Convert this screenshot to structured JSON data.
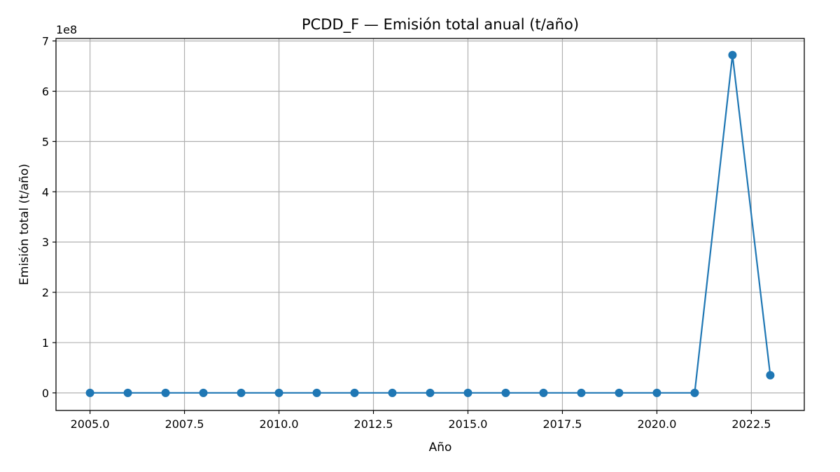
{
  "chart_data": {
    "type": "line",
    "title": "PCDD_F — Emisión total anual (t/año)",
    "xlabel": "Año",
    "ylabel": "Emisión total (t/año)",
    "y_offset_label": "1e8",
    "grid": true,
    "xlim": [
      2004.1,
      2023.9
    ],
    "ylim": [
      -0.35,
      7.05
    ],
    "x_ticks": [
      2005.0,
      2007.5,
      2010.0,
      2012.5,
      2015.0,
      2017.5,
      2020.0,
      2022.5
    ],
    "x_tick_labels": [
      "2005.0",
      "2007.5",
      "2010.0",
      "2012.5",
      "2015.0",
      "2017.5",
      "2020.0",
      "2022.5"
    ],
    "y_ticks": [
      0,
      1,
      2,
      3,
      4,
      5,
      6,
      7
    ],
    "y_tick_labels": [
      "0",
      "1",
      "2",
      "3",
      "4",
      "5",
      "6",
      "7"
    ],
    "color": "#1f77b4",
    "x": [
      2005,
      2006,
      2007,
      2008,
      2009,
      2010,
      2011,
      2012,
      2013,
      2014,
      2015,
      2016,
      2017,
      2018,
      2019,
      2020,
      2021,
      2022,
      2023
    ],
    "y_units_note": "values in units of 1e8 t/año",
    "y": [
      0,
      0,
      0,
      0,
      0,
      0,
      0,
      0,
      0,
      0,
      0,
      0,
      0,
      0,
      0,
      0,
      0,
      6.72,
      0.35
    ]
  }
}
